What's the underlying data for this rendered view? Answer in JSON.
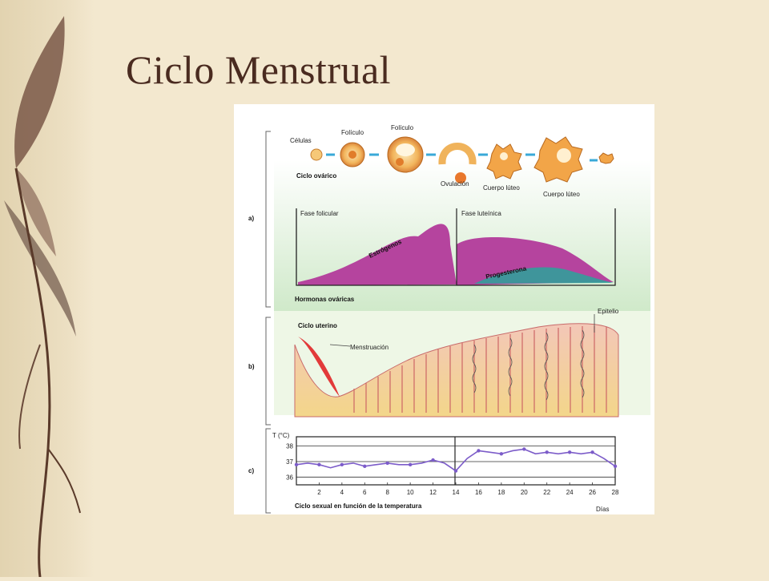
{
  "slide": {
    "title": "Ciclo Menstrual"
  },
  "figure": {
    "ovarian": {
      "cells_label": "Células",
      "follicle_label_1": "Folículo",
      "follicle_label_2": "Folículo",
      "cycle_label": "Ciclo ovárico",
      "ovulation_label": "Ovulación",
      "corpus_label_1": "Cuerpo lúteo",
      "corpus_label_2": "Cuerpo lúteo"
    },
    "hormones": {
      "panel_letter": "a)",
      "follicular_phase": "Fase folicular",
      "luteal_phase": "Fase luteínica",
      "estrogen_label": "Estrógenos",
      "progesterone_label": "Progesterona",
      "axis_label": "Hormonas ováricas"
    },
    "uterine": {
      "panel_letter": "b)",
      "cycle_label": "Ciclo uterino",
      "menstruation_label": "Menstruación",
      "epithelium_label": "Epitelio"
    },
    "temperature": {
      "panel_letter": "c)",
      "y_axis_label": "T (°C)",
      "x_axis_unit": "Días",
      "caption": "Ciclo sexual en función de la temperatura"
    },
    "colors": {
      "estrogen": "#b5449e",
      "progesterone": "#2aa39a",
      "menstruation": "#e23a3a",
      "temperature_line": "#7c5cc9"
    }
  },
  "chart_data": {
    "type": "line",
    "ylabel": "T (°C)",
    "xlabel": "Días",
    "yticks": [
      36,
      37,
      38
    ],
    "xticks": [
      2,
      4,
      6,
      8,
      10,
      12,
      14,
      16,
      18,
      20,
      22,
      24,
      26,
      28
    ],
    "ylim": [
      35.5,
      38.6
    ],
    "xlim": [
      0,
      28
    ],
    "series": [
      {
        "x": [
          0,
          1,
          2,
          3,
          4,
          5,
          6,
          7,
          8,
          9,
          10,
          11,
          12,
          13,
          14,
          15,
          16,
          17,
          18,
          19,
          20,
          21,
          22,
          23,
          24,
          25,
          26,
          27,
          28
        ],
        "values": [
          36.8,
          36.9,
          36.8,
          36.6,
          36.8,
          36.9,
          36.7,
          36.8,
          36.9,
          36.8,
          36.8,
          36.9,
          37.1,
          36.9,
          36.4,
          37.2,
          37.7,
          37.6,
          37.5,
          37.7,
          37.8,
          37.5,
          37.6,
          37.5,
          37.6,
          37.5,
          37.6,
          37.2,
          36.7
        ]
      }
    ]
  }
}
